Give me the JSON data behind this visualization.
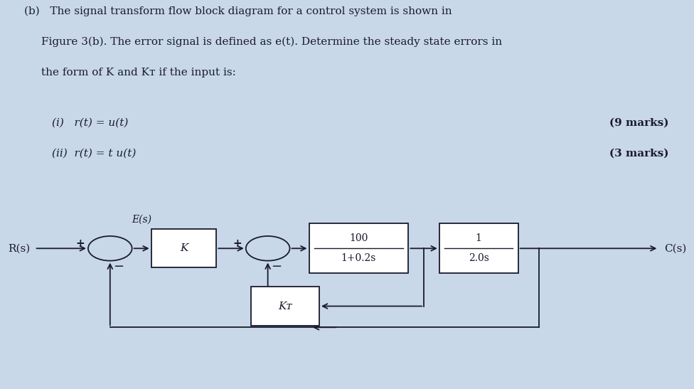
{
  "bg_color": "#c8d8e8",
  "text_color": "#1a1a2e",
  "title_line1": "(b)   The signal transform flow block diagram for a control system is shown in",
  "title_line2": "Figure 3(b). The error signal is defined as e(t). Determine the steady state errors in",
  "title_line3": "the form of K and Kᴛ if the input is:",
  "item_i": "(i)   r(t) = u(t)",
  "item_ii": "(ii)  r(t) = t u(t)",
  "marks_i": "(9 marks)",
  "marks_ii": "(3 marks)"
}
